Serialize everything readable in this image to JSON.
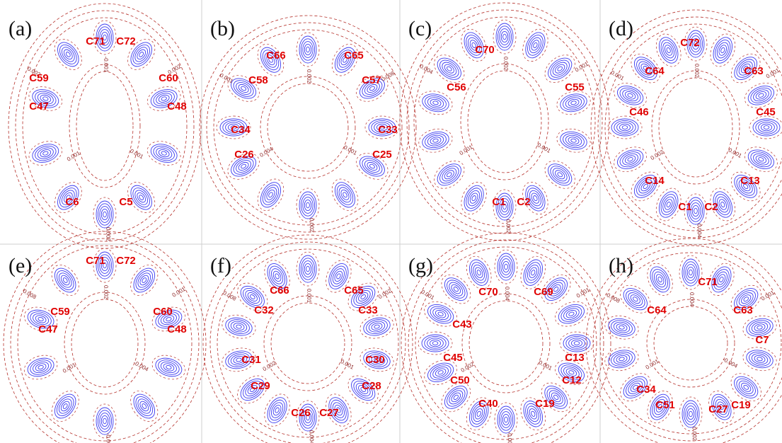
{
  "panels": [
    {
      "label": "(a)",
      "atoms": [
        "C71",
        "C72",
        "C59",
        "C60",
        "C47",
        "C48",
        "C6",
        "C5"
      ],
      "contour_labels": [
        "0.001",
        "0.002",
        "0.001",
        "0.002",
        "-0.001",
        "0.002"
      ]
    },
    {
      "label": "(b)",
      "atoms": [
        "C66",
        "C65",
        "C58",
        "C57",
        "C34",
        "C33",
        "C26",
        "C25"
      ],
      "contour_labels": [
        "0.001",
        "0.002",
        "0.004",
        "0.001",
        "0.002",
        "0.008"
      ]
    },
    {
      "label": "(c)",
      "atoms": [
        "C70",
        "C56",
        "C55",
        "C1",
        "C2"
      ],
      "contour_labels": [
        "0.001",
        "0.002",
        "0.001",
        "0.004",
        "0.002",
        "0.001"
      ]
    },
    {
      "label": "(d)",
      "atoms": [
        "C72",
        "C64",
        "C63",
        "C46",
        "C45",
        "C14",
        "C13",
        "C1",
        "C2"
      ],
      "contour_labels": [
        "0.001",
        "0.004",
        "0.002",
        "0.001",
        "0.002",
        "0.001"
      ]
    },
    {
      "label": "(e)",
      "atoms": [
        "C71",
        "C72",
        "C59",
        "C60",
        "C47",
        "C48"
      ],
      "contour_labels": [
        "-0.004",
        "-0.002",
        "0.001",
        "0.008",
        "0.002",
        "0.001"
      ]
    },
    {
      "label": "(f)",
      "atoms": [
        "C66",
        "C65",
        "C32",
        "C33",
        "C31",
        "C30",
        "C29",
        "C28",
        "C26",
        "C27"
      ],
      "contour_labels": [
        "0.001",
        "0.004",
        "0.002",
        "0.008",
        "0.001",
        "0.002"
      ]
    },
    {
      "label": "(g)",
      "atoms": [
        "C70",
        "C69",
        "C43",
        "C45",
        "C13",
        "C50",
        "C12",
        "C40",
        "C19"
      ],
      "contour_labels": [
        "0.001",
        "-0.004",
        "0.002",
        "0.001",
        "0.004",
        "0.001"
      ]
    },
    {
      "label": "(h)",
      "atoms": [
        "C71",
        "C64",
        "C63",
        "C7",
        "C34",
        "C51",
        "C27",
        "C19"
      ],
      "contour_labels": [
        "-0.004",
        "0.002",
        "0.001",
        "-0.008",
        "0.004",
        "0.001"
      ]
    }
  ]
}
